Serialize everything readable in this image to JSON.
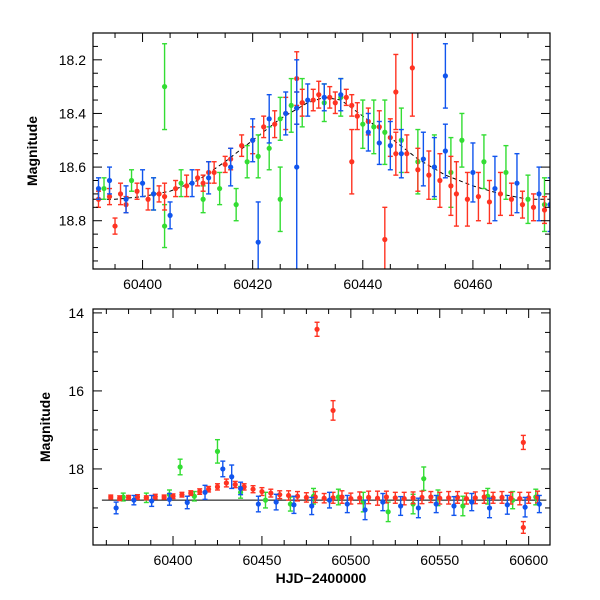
{
  "chart_data": [
    {
      "type": "scatter",
      "panel": "top",
      "xlabel": "",
      "ylabel": "Magnitude",
      "xlim": [
        60391,
        60474
      ],
      "ylim": [
        18.98,
        18.1
      ],
      "y_inverted": true,
      "xticks": [
        60400,
        60420,
        60440,
        60460
      ],
      "yticks": [
        18.2,
        18.4,
        18.6,
        18.8
      ],
      "model_curve": {
        "style": "dashed",
        "color": "#000000",
        "x": [
          60391,
          60395,
          60400,
          60405,
          60410,
          60415,
          60420,
          60425,
          60430,
          60433,
          60436,
          60440,
          60445,
          60450,
          60455,
          60460,
          60465,
          60470,
          60474
        ],
        "y": [
          18.72,
          18.72,
          18.71,
          18.69,
          18.65,
          18.58,
          18.5,
          18.42,
          18.36,
          18.34,
          18.35,
          18.41,
          18.49,
          18.57,
          18.63,
          18.67,
          18.7,
          18.72,
          18.72
        ]
      },
      "series": [
        {
          "color": "#ff3322",
          "x": [
            60392,
            60394,
            60396,
            60397,
            60399,
            60401,
            60403,
            60404,
            60406,
            60408,
            60410,
            60411,
            60413,
            60415,
            60416,
            60418,
            60420,
            60422,
            60424,
            60426,
            60428,
            60429,
            60431,
            60432,
            60434,
            60435,
            60437,
            60438,
            60439,
            60441,
            60443,
            60445,
            60446,
            60448,
            60450,
            60452,
            60454,
            60456,
            60457,
            60459,
            60461,
            60463,
            60465,
            60467,
            60469,
            60471,
            60473,
            60428,
            60438,
            60446,
            60449,
            60444,
            60395,
            60412
          ],
          "y": [
            18.72,
            18.71,
            18.7,
            18.74,
            18.69,
            18.72,
            18.7,
            18.71,
            18.68,
            18.67,
            18.64,
            18.66,
            18.62,
            18.59,
            18.57,
            18.52,
            18.5,
            18.45,
            18.44,
            18.4,
            18.38,
            18.36,
            18.35,
            18.33,
            18.34,
            18.36,
            18.34,
            18.37,
            18.41,
            18.43,
            18.45,
            18.49,
            18.55,
            18.55,
            18.61,
            18.63,
            18.65,
            18.67,
            18.7,
            18.72,
            18.71,
            18.73,
            18.7,
            18.72,
            18.74,
            18.75,
            18.76,
            18.27,
            18.58,
            18.32,
            18.23,
            18.87,
            18.82,
            18.62
          ],
          "err": [
            0.03,
            0.03,
            0.04,
            0.03,
            0.03,
            0.04,
            0.03,
            0.05,
            0.03,
            0.04,
            0.03,
            0.03,
            0.04,
            0.03,
            0.04,
            0.04,
            0.05,
            0.04,
            0.05,
            0.06,
            0.06,
            0.05,
            0.04,
            0.05,
            0.04,
            0.04,
            0.03,
            0.04,
            0.05,
            0.05,
            0.06,
            0.07,
            0.08,
            0.07,
            0.08,
            0.09,
            0.1,
            0.11,
            0.12,
            0.1,
            0.09,
            0.08,
            0.08,
            0.06,
            0.05,
            0.05,
            0.05,
            0.1,
            0.12,
            0.14,
            0.18,
            0.12,
            0.03,
            0.04
          ]
        },
        {
          "color": "#33dd33",
          "x": [
            60393,
            60398,
            60402,
            60404,
            60407,
            60411,
            60414,
            60417,
            60419,
            60421,
            60423,
            60425,
            60427,
            60429,
            60433,
            60436,
            60440,
            60442,
            60444,
            60447,
            60450,
            60453,
            60456,
            60458,
            60462,
            60466,
            60470,
            60473,
            60404,
            60425
          ],
          "y": [
            18.68,
            18.65,
            18.7,
            18.82,
            18.66,
            18.72,
            18.68,
            18.74,
            18.58,
            18.56,
            18.53,
            18.42,
            18.37,
            18.36,
            18.36,
            18.34,
            18.44,
            18.45,
            18.47,
            18.5,
            18.58,
            18.6,
            18.62,
            18.5,
            18.58,
            18.62,
            18.72,
            18.74,
            18.3,
            18.72
          ],
          "err": [
            0.04,
            0.04,
            0.06,
            0.08,
            0.05,
            0.05,
            0.06,
            0.06,
            0.06,
            0.08,
            0.08,
            0.08,
            0.1,
            0.09,
            0.07,
            0.07,
            0.09,
            0.1,
            0.12,
            0.12,
            0.12,
            0.12,
            0.13,
            0.1,
            0.1,
            0.1,
            0.09,
            0.1,
            0.16,
            0.12
          ]
        },
        {
          "color": "#1155ee",
          "x": [
            60392,
            60394,
            60397,
            60400,
            60402,
            60405,
            60409,
            60412,
            60416,
            60420,
            60423,
            60426,
            60428,
            60430,
            60433,
            60436,
            60441,
            60443,
            60445,
            60447,
            60451,
            60453,
            60455,
            60460,
            60464,
            60468,
            60472,
            60474,
            60421,
            60428,
            60455
          ],
          "y": [
            18.68,
            18.65,
            18.72,
            18.66,
            18.7,
            18.78,
            18.66,
            18.64,
            18.6,
            18.5,
            18.42,
            18.4,
            18.38,
            18.35,
            18.34,
            18.33,
            18.47,
            18.51,
            18.52,
            18.55,
            18.57,
            18.6,
            18.54,
            18.62,
            18.68,
            18.66,
            18.7,
            18.74,
            18.88,
            18.6,
            18.26
          ],
          "err": [
            0.04,
            0.05,
            0.05,
            0.05,
            0.06,
            0.05,
            0.05,
            0.06,
            0.07,
            0.08,
            0.09,
            0.08,
            0.06,
            0.06,
            0.05,
            0.06,
            0.07,
            0.08,
            0.09,
            0.09,
            0.1,
            0.11,
            0.1,
            0.11,
            0.12,
            0.11,
            0.1,
            0.1,
            0.15,
            0.4,
            0.12
          ]
        }
      ]
    },
    {
      "type": "scatter",
      "panel": "bottom",
      "xlabel": "HJD−2400000",
      "ylabel": "Magnitude",
      "xlim": [
        60355,
        60612
      ],
      "ylim": [
        19.95,
        13.9
      ],
      "y_inverted": true,
      "xticks": [
        60400,
        60450,
        60500,
        60550,
        60600
      ],
      "yticks": [
        14,
        16,
        18
      ],
      "model_curve": {
        "style": "solid",
        "color": "#000000",
        "x": [
          60360,
          60610
        ],
        "y": [
          18.8,
          18.8
        ]
      },
      "series": [
        {
          "color": "#ff3322",
          "x": [
            60365,
            60370,
            60375,
            60380,
            60385,
            60390,
            60395,
            60400,
            60405,
            60410,
            60415,
            60420,
            60425,
            60430,
            60435,
            60440,
            60445,
            60450,
            60455,
            60460,
            60465,
            60470,
            60475,
            60480,
            60485,
            60490,
            60495,
            60500,
            60505,
            60510,
            60515,
            60520,
            60525,
            60530,
            60535,
            60540,
            60545,
            60550,
            60555,
            60560,
            60565,
            60570,
            60575,
            60580,
            60585,
            60590,
            60595,
            60600,
            60605,
            60481,
            60490,
            60597,
            60597
          ],
          "y": [
            18.72,
            18.75,
            18.73,
            18.72,
            18.74,
            18.71,
            18.72,
            18.7,
            18.66,
            18.62,
            18.58,
            18.52,
            18.46,
            18.36,
            18.4,
            18.46,
            18.52,
            18.58,
            18.62,
            18.66,
            18.68,
            18.7,
            18.73,
            18.72,
            18.75,
            18.74,
            18.72,
            18.76,
            18.74,
            18.73,
            18.75,
            18.72,
            18.74,
            18.76,
            18.74,
            18.73,
            18.72,
            18.75,
            18.74,
            18.73,
            18.76,
            18.74,
            18.72,
            18.74,
            18.73,
            18.75,
            18.76,
            18.74,
            18.72,
            14.42,
            16.5,
            17.32,
            19.5
          ],
          "err": [
            0.05,
            0.06,
            0.05,
            0.06,
            0.05,
            0.06,
            0.05,
            0.06,
            0.06,
            0.06,
            0.07,
            0.07,
            0.08,
            0.1,
            0.08,
            0.08,
            0.09,
            0.1,
            0.1,
            0.1,
            0.12,
            0.12,
            0.12,
            0.14,
            0.12,
            0.14,
            0.16,
            0.14,
            0.15,
            0.16,
            0.18,
            0.15,
            0.14,
            0.16,
            0.15,
            0.16,
            0.14,
            0.15,
            0.16,
            0.15,
            0.14,
            0.15,
            0.16,
            0.14,
            0.15,
            0.15,
            0.16,
            0.14,
            0.15,
            0.18,
            0.25,
            0.18,
            0.15
          ]
        },
        {
          "color": "#33dd33",
          "x": [
            60372,
            60385,
            60398,
            60404,
            60412,
            60425,
            60438,
            60452,
            60466,
            60479,
            60493,
            60507,
            60521,
            60535,
            60541,
            60549,
            60563,
            60577,
            60591,
            60604
          ],
          "y": [
            18.72,
            18.74,
            18.66,
            17.95,
            18.7,
            17.55,
            18.6,
            18.8,
            18.9,
            18.7,
            18.72,
            18.85,
            19.1,
            18.9,
            18.25,
            18.74,
            18.95,
            18.7,
            18.8,
            18.72
          ],
          "err": [
            0.1,
            0.12,
            0.12,
            0.2,
            0.12,
            0.3,
            0.15,
            0.2,
            0.18,
            0.2,
            0.2,
            0.25,
            0.25,
            0.25,
            0.3,
            0.2,
            0.25,
            0.2,
            0.22,
            0.2
          ]
        },
        {
          "color": "#1155ee",
          "x": [
            60368,
            60378,
            60388,
            60398,
            60408,
            60418,
            60428,
            60438,
            60448,
            60458,
            60468,
            60478,
            60488,
            60498,
            60508,
            60518,
            60528,
            60538,
            60548,
            60558,
            60568,
            60578,
            60588,
            60598,
            60606,
            60433
          ],
          "y": [
            19.0,
            18.8,
            18.82,
            18.78,
            18.86,
            18.6,
            18.0,
            18.5,
            18.9,
            18.85,
            18.92,
            18.95,
            18.8,
            18.9,
            19.05,
            18.85,
            18.95,
            19.0,
            18.9,
            18.95,
            18.85,
            19.0,
            18.92,
            18.98,
            18.9,
            18.2
          ],
          "err": [
            0.15,
            0.12,
            0.14,
            0.15,
            0.16,
            0.18,
            0.2,
            0.16,
            0.2,
            0.2,
            0.22,
            0.22,
            0.2,
            0.22,
            0.25,
            0.22,
            0.24,
            0.25,
            0.22,
            0.24,
            0.22,
            0.25,
            0.24,
            0.25,
            0.22,
            0.3
          ]
        }
      ]
    }
  ]
}
